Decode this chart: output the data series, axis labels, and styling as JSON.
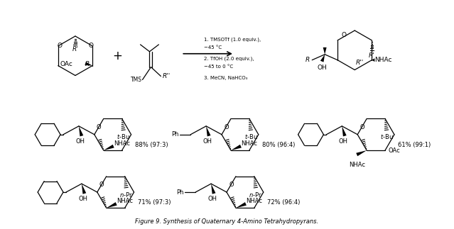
{
  "title": "Figure 9. Synthesis of Quaternary 4-Amino Tetrahydropyrans.",
  "figsize": [
    6.39,
    3.23
  ],
  "dpi": 100,
  "background": "#ffffff",
  "reaction_conditions": [
    "1. TMSOTf (1.0 equiv.),",
    "−45 °C",
    "2. TfOH (2.0 equiv.),",
    "−45 to 0 °C",
    "3. MeCN, NaHCO₃"
  ],
  "font_size": 6.5,
  "lw": 0.9
}
